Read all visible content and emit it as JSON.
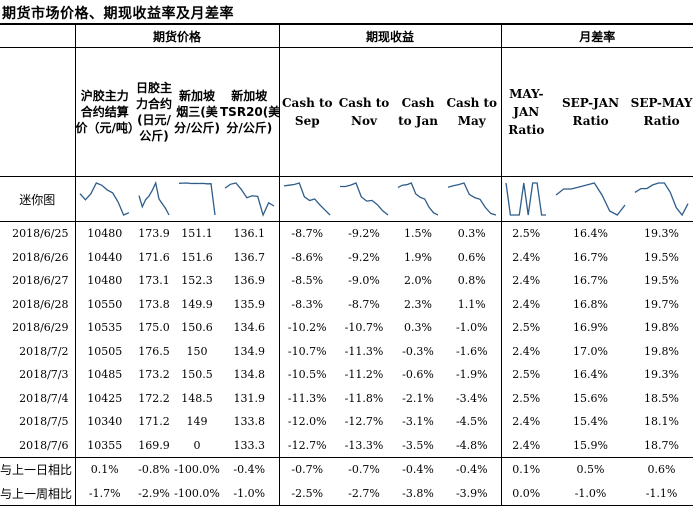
{
  "title": "期货市场价格、期现收益率及月差率",
  "groups": {
    "futures": "期货价格",
    "spot": "期现收益",
    "spread": "月差率"
  },
  "columns": [
    "沪胶主力合约结算价（元/吨）",
    "日胶主力合约(日元/公斤)",
    "新加坡烟三(美分/公斤)",
    "新加坡TSR20(美分/公斤)",
    "Cash to Sep",
    "Cash to Nov",
    "Cash to Jan",
    "Cash to May",
    "MAY-JAN Ratio",
    "SEP-JAN Ratio",
    "SEP-MAY Ratio"
  ],
  "sparkline_label": "迷你图",
  "rows": [
    {
      "date": "2018/6/25",
      "values": [
        "10480",
        "173.9",
        "151.1",
        "136.1",
        "-8.7%",
        "-9.2%",
        "1.5%",
        "0.3%",
        "2.5%",
        "16.4%",
        "19.3%"
      ]
    },
    {
      "date": "2018/6/26",
      "values": [
        "10440",
        "171.6",
        "151.6",
        "136.7",
        "-8.6%",
        "-9.2%",
        "1.9%",
        "0.6%",
        "2.4%",
        "16.7%",
        "19.5%"
      ]
    },
    {
      "date": "2018/6/27",
      "values": [
        "10480",
        "173.1",
        "152.3",
        "136.9",
        "-8.5%",
        "-9.0%",
        "2.0%",
        "0.8%",
        "2.4%",
        "16.7%",
        "19.5%"
      ]
    },
    {
      "date": "2018/6/28",
      "values": [
        "10550",
        "173.8",
        "149.9",
        "135.9",
        "-8.3%",
        "-8.7%",
        "2.3%",
        "1.1%",
        "2.4%",
        "16.8%",
        "19.7%"
      ]
    },
    {
      "date": "2018/6/29",
      "values": [
        "10535",
        "175.0",
        "150.6",
        "134.6",
        "-10.2%",
        "-10.7%",
        "0.3%",
        "-1.0%",
        "2.5%",
        "16.9%",
        "19.8%"
      ]
    },
    {
      "date": "2018/7/2",
      "values": [
        "10505",
        "176.5",
        "150",
        "134.9",
        "-10.7%",
        "-11.3%",
        "-0.3%",
        "-1.6%",
        "2.4%",
        "17.0%",
        "19.8%"
      ]
    },
    {
      "date": "2018/7/3",
      "values": [
        "10485",
        "173.2",
        "150.5",
        "134.8",
        "-10.5%",
        "-11.2%",
        "-0.6%",
        "-1.9%",
        "2.5%",
        "16.4%",
        "19.3%"
      ]
    },
    {
      "date": "2018/7/4",
      "values": [
        "10425",
        "172.2",
        "148.5",
        "131.9",
        "-11.3%",
        "-11.8%",
        "-2.1%",
        "-3.4%",
        "2.5%",
        "15.6%",
        "18.5%"
      ]
    },
    {
      "date": "2018/7/5",
      "values": [
        "10340",
        "171.2",
        "149",
        "133.8",
        "-12.0%",
        "-12.7%",
        "-3.1%",
        "-4.5%",
        "2.4%",
        "15.4%",
        "18.1%"
      ]
    },
    {
      "date": "2018/7/6",
      "values": [
        "10355",
        "169.9",
        "0",
        "133.3",
        "-12.7%",
        "-13.3%",
        "-3.5%",
        "-4.8%",
        "2.4%",
        "15.9%",
        "18.7%"
      ]
    }
  ],
  "comparisons": [
    {
      "label": "与上一日相比",
      "values": [
        "0.1%",
        "-0.8%",
        "-100.0%",
        "-0.4%",
        "-0.7%",
        "-0.7%",
        "-0.4%",
        "-0.4%",
        "0.1%",
        "0.5%",
        "0.6%"
      ]
    },
    {
      "label": "与上一周相比",
      "values": [
        "-1.7%",
        "-2.9%",
        "-100.0%",
        "-1.0%",
        "-2.5%",
        "-2.7%",
        "-3.8%",
        "-3.9%",
        "0.0%",
        "-1.0%",
        "-1.1%"
      ]
    }
  ],
  "sparkline_color": "#2f5d8a"
}
